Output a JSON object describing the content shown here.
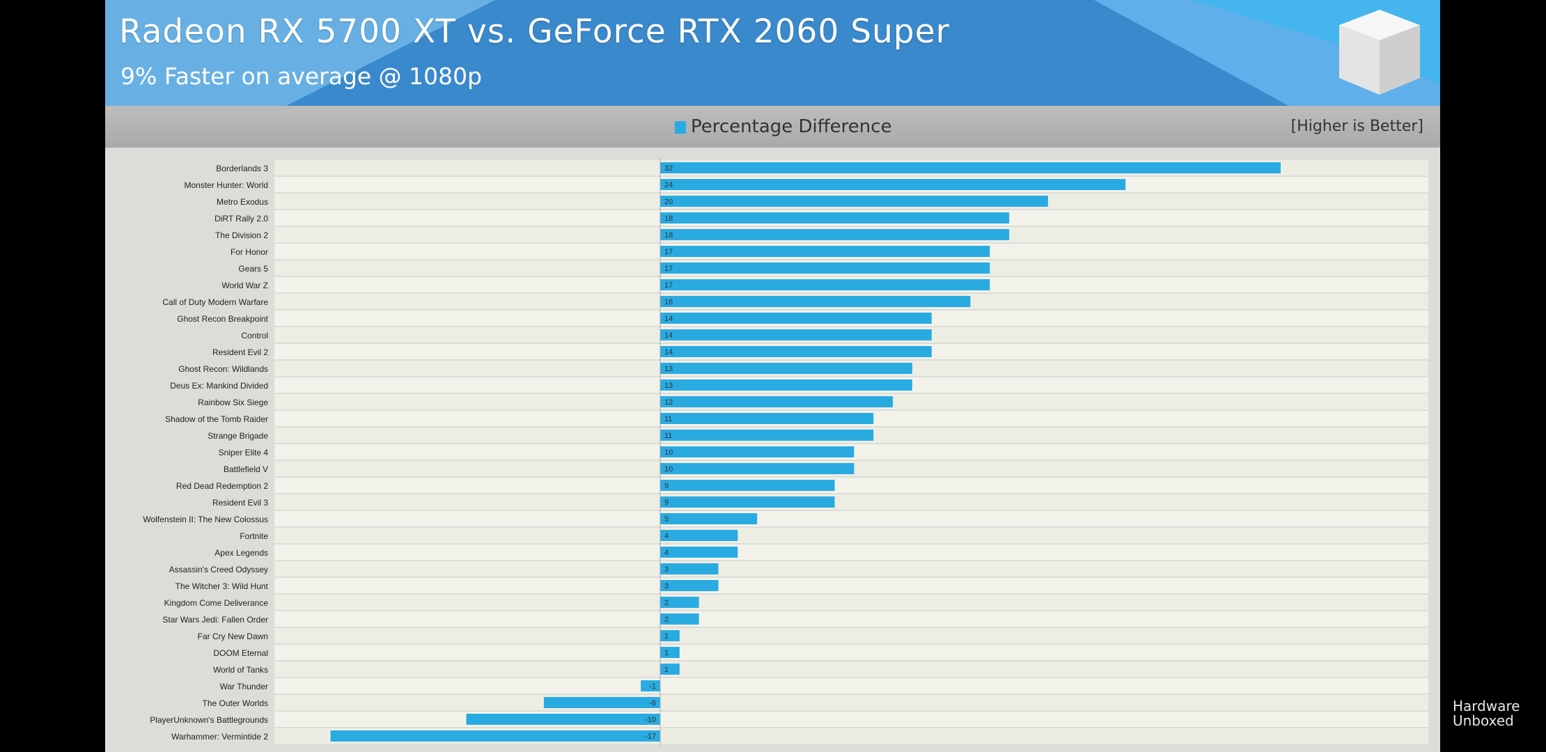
{
  "title": "Radeon RX 5700 XT vs. GeForce RTX 2060 Super",
  "subtitle": "9% Faster on average @ 1080p",
  "legend": {
    "label": "Percentage Difference",
    "note": "[Higher is Better]"
  },
  "watermark": {
    "line1": "Hardware",
    "line2": "Unboxed"
  },
  "colors": {
    "bar": "#29abe2",
    "banner": "#4a9ad6",
    "row": "#eeede4",
    "rowAlt": "#f3f2ea"
  },
  "chart_data": {
    "type": "bar",
    "orientation": "horizontal",
    "title": "Radeon RX 5700 XT vs. GeForce RTX 2060 Super",
    "subtitle": "9% Faster on average @ 1080p",
    "series": [
      {
        "name": "Percentage Difference"
      }
    ],
    "categories": [
      "Borderlands 3",
      "Monster Hunter: World",
      "Metro Exodus",
      "DiRT Rally 2.0",
      "The Division 2",
      "For Honor",
      "Gears 5",
      "World War Z",
      "Call of Duty Modern Warfare",
      "Ghost Recon Breakpoint",
      "Control",
      "Resident Evil 2",
      "Ghost Recon: Wildlands",
      "Deus Ex: Mankind Divided",
      "Rainbow Six Siege",
      "Shadow of the Tomb Raider",
      "Strange Brigade",
      "Sniper Elite 4",
      "Battlefield V",
      "Red Dead Redemption 2",
      "Resident Evil 3",
      "Wolfenstein II: The New Colossus",
      "Fortnite",
      "Apex Legends",
      "Assassin's Creed Odyssey",
      "The Witcher 3: Wild Hunt",
      "Kingdom Come Deliverance",
      "Star Wars Jedi: Fallen Order",
      "Far Cry New Dawn",
      "DOOM Eternal",
      "World of Tanks",
      "War Thunder",
      "The Outer Worlds",
      "PlayerUnknown's Battlegrounds",
      "Warhammer: Vermintide 2"
    ],
    "values": [
      32,
      24,
      20,
      18,
      18,
      17,
      17,
      17,
      16,
      14,
      14,
      14,
      13,
      13,
      12,
      11,
      11,
      10,
      10,
      9,
      9,
      5,
      4,
      4,
      3,
      3,
      2,
      2,
      1,
      1,
      1,
      -1,
      -6,
      -10,
      -17
    ],
    "xlim": [
      -20,
      40
    ],
    "note": "[Higher is Better]"
  }
}
